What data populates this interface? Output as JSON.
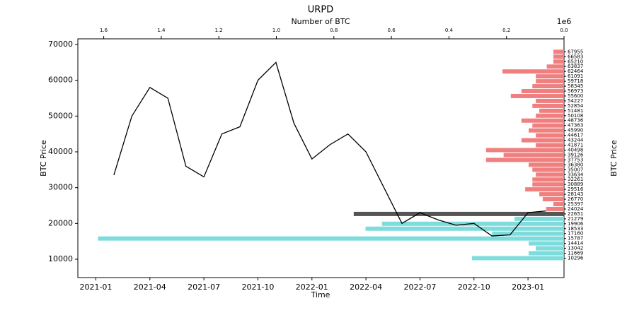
{
  "chart_data": [
    {
      "type": "line",
      "title": "URPD",
      "x_label": "Time",
      "y_label": "BTC Price",
      "color": "#000000",
      "x": [
        "2021-02",
        "2021-03",
        "2021-04",
        "2021-05",
        "2021-06",
        "2021-07",
        "2021-08",
        "2021-09",
        "2021-10",
        "2021-11",
        "2021-12",
        "2022-01",
        "2022-02",
        "2022-03",
        "2022-04",
        "2022-05",
        "2022-06",
        "2022-07",
        "2022-08",
        "2022-09",
        "2022-10",
        "2022-11",
        "2022-12",
        "2023-01",
        "2023-02"
      ],
      "values": [
        33500,
        50000,
        58000,
        55000,
        36000,
        33000,
        45000,
        47000,
        60000,
        65000,
        48000,
        38000,
        42000,
        45000,
        40000,
        30000,
        20000,
        23000,
        21000,
        19500,
        20000,
        16500,
        16800,
        23000,
        23500
      ],
      "xlim": [
        "2020-12",
        "2023-03"
      ],
      "xticks": [
        "2021-01",
        "2021-04",
        "2021-07",
        "2021-10",
        "2022-01",
        "2022-04",
        "2022-07",
        "2022-10",
        "2023-01"
      ],
      "ylim": [
        4870,
        71580
      ],
      "yticks": [
        10000,
        20000,
        30000,
        40000,
        50000,
        60000,
        70000
      ]
    },
    {
      "type": "barh",
      "x_label": "Number of BTC",
      "x_offset_label": "1e6",
      "y_label": "BTC Price",
      "categories": [
        67955,
        66583,
        65210,
        63837,
        62464,
        61091,
        59718,
        58345,
        56973,
        55600,
        54227,
        52854,
        51481,
        50108,
        48736,
        47363,
        45990,
        44617,
        43244,
        41871,
        40498,
        39126,
        37753,
        36380,
        35007,
        33634,
        32261,
        30889,
        29516,
        28143,
        26770,
        25397,
        24024,
        22651,
        21279,
        19906,
        18533,
        17160,
        15787,
        14414,
        13042,
        11669,
        10296
      ],
      "values": [
        37000,
        37000,
        37000,
        60000,
        214000,
        98000,
        98000,
        110000,
        148000,
        185000,
        98000,
        110000,
        86000,
        98000,
        148000,
        110000,
        123000,
        98000,
        148000,
        98000,
        271000,
        210000,
        271000,
        123000,
        110000,
        98000,
        110000,
        110000,
        135000,
        86000,
        74000,
        37000,
        62000,
        731000,
        172000,
        633000,
        690000,
        250000,
        1620000,
        123000,
        98000,
        123000,
        320000
      ],
      "colors": [
        "#f08080",
        "#f08080",
        "#f08080",
        "#f08080",
        "#f08080",
        "#f08080",
        "#f08080",
        "#f08080",
        "#f08080",
        "#f08080",
        "#f08080",
        "#f08080",
        "#f08080",
        "#f08080",
        "#f08080",
        "#f08080",
        "#f08080",
        "#f08080",
        "#f08080",
        "#f08080",
        "#f08080",
        "#f08080",
        "#f08080",
        "#f08080",
        "#f08080",
        "#f08080",
        "#f08080",
        "#f08080",
        "#f08080",
        "#f08080",
        "#f08080",
        "#f08080",
        "#f08080",
        "#555555",
        "#7fdcdc",
        "#7fdcdc",
        "#7fdcdc",
        "#7fdcdc",
        "#7fdcdc",
        "#7fdcdc",
        "#7fdcdc",
        "#7fdcdc",
        "#7fdcdc"
      ],
      "xlim": [
        1690000,
        0
      ],
      "xticks": [
        {
          "value": 1600000,
          "label": "1.6"
        },
        {
          "value": 1400000,
          "label": "1.4"
        },
        {
          "value": 1200000,
          "label": "1.2"
        },
        {
          "value": 1000000,
          "label": "1.0"
        },
        {
          "value": 800000,
          "label": "0.8"
        },
        {
          "value": 600000,
          "label": "0.6"
        },
        {
          "value": 400000,
          "label": "0.4"
        },
        {
          "value": 200000,
          "label": "0.2"
        },
        {
          "value": 0,
          "label": "0.0"
        }
      ],
      "ylim": [
        4870,
        71580
      ]
    }
  ]
}
